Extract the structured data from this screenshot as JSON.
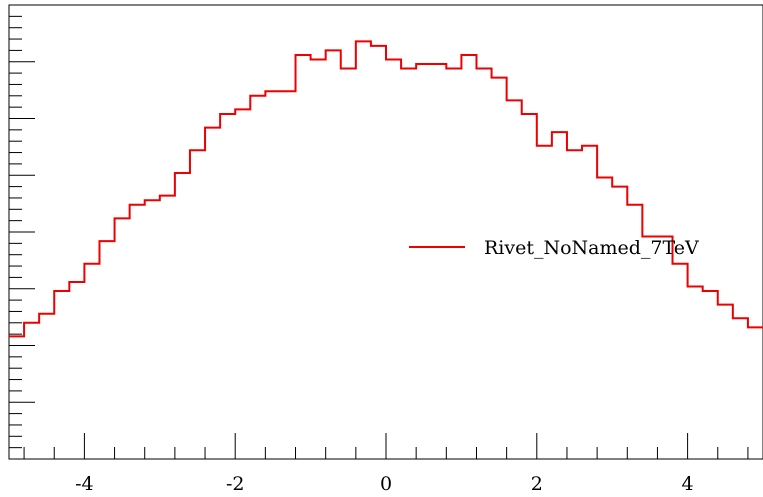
{
  "chart_data": {
    "type": "line",
    "step": true,
    "xlim": [
      -5.0,
      5.0
    ],
    "ylim": [
      0,
      1
    ],
    "x_ticks": [
      -4,
      -2,
      0,
      2,
      4
    ],
    "x_tick_labels": [
      "-4",
      "-2",
      "0",
      "2",
      "4"
    ],
    "grid": false,
    "legend_position": "right",
    "series": [
      {
        "name": "Rivet_NoNamed_7TeV",
        "color": "#ee0000",
        "bin_edges": [
          -5.0,
          -4.8,
          -4.6,
          -4.4,
          -4.2,
          -4.0,
          -3.8,
          -3.6,
          -3.4,
          -3.2,
          -3.0,
          -2.8,
          -2.6,
          -2.4,
          -2.2,
          -2.0,
          -1.8,
          -1.6,
          -1.4,
          -1.2,
          -1.0,
          -0.8,
          -0.6,
          -0.4,
          -0.2,
          0.0,
          0.2,
          0.4,
          0.6,
          0.8,
          1.0,
          1.2,
          1.4,
          1.6,
          1.8,
          2.0,
          2.2,
          2.4,
          2.6,
          2.8,
          3.0,
          3.2,
          3.4,
          3.6,
          3.8,
          4.0,
          4.2,
          4.4,
          4.6,
          4.8,
          5.0
        ],
        "values": [
          0.27,
          0.3,
          0.32,
          0.37,
          0.39,
          0.43,
          0.48,
          0.53,
          0.56,
          0.57,
          0.58,
          0.63,
          0.68,
          0.73,
          0.76,
          0.77,
          0.8,
          0.81,
          0.81,
          0.89,
          0.88,
          0.9,
          0.86,
          0.92,
          0.91,
          0.88,
          0.86,
          0.87,
          0.87,
          0.86,
          0.89,
          0.86,
          0.84,
          0.79,
          0.76,
          0.69,
          0.72,
          0.68,
          0.69,
          0.62,
          0.6,
          0.56,
          0.49,
          0.49,
          0.43,
          0.38,
          0.37,
          0.34,
          0.31,
          0.29
        ]
      }
    ]
  }
}
